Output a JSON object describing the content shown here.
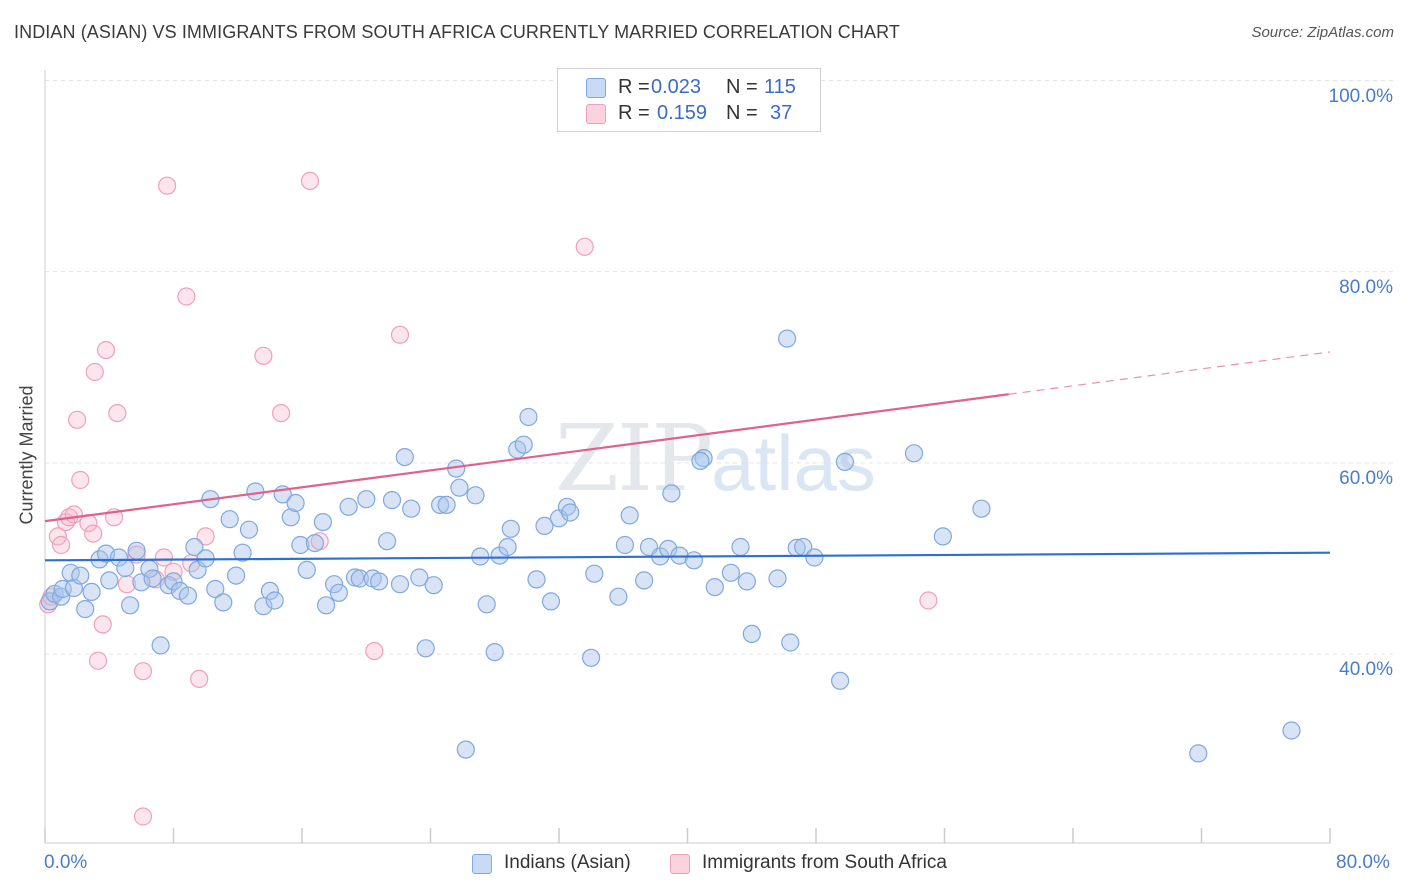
{
  "title": "INDIAN (ASIAN) VS IMMIGRANTS FROM SOUTH AFRICA CURRENTLY MARRIED CORRELATION CHART",
  "source": "Source: ZipAtlas.com",
  "watermark": {
    "zip": "ZIP",
    "atlas": "atlas"
  },
  "stats": {
    "rows": [
      {
        "r_label": "R =",
        "r_value": "0.023",
        "n_label": "N =",
        "n_value": "115",
        "color": "#a9c4ec"
      },
      {
        "r_label": "R =",
        "r_value": "0.159",
        "n_label": "N =",
        "n_value": "37",
        "color": "#f5b5c8"
      }
    ]
  },
  "legend": {
    "items": [
      {
        "label": "Indians (Asian)",
        "color": "#a9c4ec"
      },
      {
        "label": "Immigrants from South Africa",
        "color": "#f5b5c8"
      }
    ]
  },
  "colors": {
    "blue_line": "#2f6fd0",
    "pink_line": "#e0628c",
    "blue_point": "#7fa8e0",
    "pink_point": "#f0a0b8",
    "axis_label": "#4a7cc9"
  },
  "chart_data": {
    "type": "scatter",
    "title": "INDIAN (ASIAN) VS IMMIGRANTS FROM SOUTH AFRICA CURRENTLY MARRIED CORRELATION CHART",
    "xlabel": "",
    "ylabel": "Currently Married",
    "xlim": [
      0,
      80
    ],
    "ylim": [
      20,
      102
    ],
    "x_tick_labels": [
      "0.0%",
      "80.0%"
    ],
    "y_tick_labels": [
      "40.0%",
      "60.0%",
      "80.0%",
      "100.0%"
    ],
    "y_ticks": [
      40,
      60,
      80,
      100
    ],
    "grid": true,
    "legend_position": "bottom",
    "series": [
      {
        "name": "Indians (Asian)",
        "r": 0.023,
        "n": 115,
        "trend": {
          "x": [
            0,
            80
          ],
          "y": [
            49.8,
            50.6
          ],
          "dashed_from": null
        },
        "points": [
          [
            0.3,
            45.5
          ],
          [
            0.6,
            46.3
          ],
          [
            1.0,
            46.0
          ],
          [
            1.1,
            46.8
          ],
          [
            1.6,
            48.5
          ],
          [
            1.8,
            46.9
          ],
          [
            2.2,
            48.2
          ],
          [
            2.5,
            44.7
          ],
          [
            2.9,
            46.5
          ],
          [
            3.4,
            49.9
          ],
          [
            3.8,
            50.5
          ],
          [
            4.0,
            47.7
          ],
          [
            4.6,
            50.1
          ],
          [
            5.0,
            49.0
          ],
          [
            5.3,
            45.1
          ],
          [
            5.7,
            50.8
          ],
          [
            6.0,
            47.5
          ],
          [
            6.5,
            48.9
          ],
          [
            6.7,
            47.9
          ],
          [
            7.2,
            40.9
          ],
          [
            7.7,
            47.2
          ],
          [
            8.0,
            47.6
          ],
          [
            8.4,
            46.6
          ],
          [
            8.9,
            46.1
          ],
          [
            9.3,
            51.2
          ],
          [
            9.5,
            48.8
          ],
          [
            10.0,
            50.0
          ],
          [
            10.3,
            56.2
          ],
          [
            10.6,
            46.8
          ],
          [
            11.1,
            45.4
          ],
          [
            11.5,
            54.1
          ],
          [
            11.9,
            48.2
          ],
          [
            12.3,
            50.6
          ],
          [
            12.7,
            53.0
          ],
          [
            13.1,
            57.0
          ],
          [
            13.6,
            45.0
          ],
          [
            14.0,
            46.6
          ],
          [
            14.3,
            45.6
          ],
          [
            14.8,
            56.7
          ],
          [
            15.3,
            54.3
          ],
          [
            15.6,
            55.8
          ],
          [
            15.9,
            51.4
          ],
          [
            16.3,
            48.8
          ],
          [
            16.8,
            51.6
          ],
          [
            17.3,
            53.8
          ],
          [
            17.5,
            45.1
          ],
          [
            18.0,
            47.3
          ],
          [
            18.3,
            46.4
          ],
          [
            18.9,
            55.4
          ],
          [
            19.3,
            48.0
          ],
          [
            19.6,
            47.9
          ],
          [
            20.0,
            56.2
          ],
          [
            20.4,
            47.9
          ],
          [
            20.8,
            47.6
          ],
          [
            21.3,
            51.8
          ],
          [
            21.6,
            56.1
          ],
          [
            22.1,
            47.3
          ],
          [
            22.4,
            60.6
          ],
          [
            22.8,
            55.2
          ],
          [
            23.3,
            48.0
          ],
          [
            23.7,
            40.6
          ],
          [
            24.2,
            47.2
          ],
          [
            24.6,
            55.6
          ],
          [
            25.0,
            55.6
          ],
          [
            25.6,
            59.4
          ],
          [
            25.8,
            57.4
          ],
          [
            26.2,
            30.0
          ],
          [
            26.8,
            56.6
          ],
          [
            27.1,
            50.2
          ],
          [
            27.5,
            45.2
          ],
          [
            28.0,
            40.2
          ],
          [
            28.3,
            50.3
          ],
          [
            28.8,
            51.2
          ],
          [
            29.0,
            53.1
          ],
          [
            29.4,
            61.4
          ],
          [
            29.8,
            61.9
          ],
          [
            30.1,
            64.8
          ],
          [
            30.6,
            47.8
          ],
          [
            31.1,
            53.4
          ],
          [
            31.5,
            45.5
          ],
          [
            32.0,
            54.2
          ],
          [
            32.5,
            55.4
          ],
          [
            32.7,
            54.8
          ],
          [
            34.2,
            48.4
          ],
          [
            34.0,
            39.6
          ],
          [
            35.7,
            46.0
          ],
          [
            36.1,
            51.4
          ],
          [
            36.4,
            54.5
          ],
          [
            37.3,
            47.7
          ],
          [
            37.6,
            51.2
          ],
          [
            38.3,
            50.2
          ],
          [
            38.8,
            51.0
          ],
          [
            39.0,
            56.8
          ],
          [
            39.5,
            50.3
          ],
          [
            40.4,
            49.8
          ],
          [
            41.0,
            60.5
          ],
          [
            40.8,
            60.2
          ],
          [
            41.7,
            47.0
          ],
          [
            42.7,
            48.5
          ],
          [
            43.3,
            51.2
          ],
          [
            43.7,
            47.6
          ],
          [
            44.0,
            42.1
          ],
          [
            45.6,
            47.9
          ],
          [
            46.2,
            73.0
          ],
          [
            46.4,
            41.2
          ],
          [
            46.8,
            51.1
          ],
          [
            47.2,
            51.2
          ],
          [
            47.9,
            50.1
          ],
          [
            49.5,
            37.2
          ],
          [
            49.8,
            60.1
          ],
          [
            54.1,
            61.0
          ],
          [
            55.9,
            52.3
          ],
          [
            58.3,
            55.2
          ],
          [
            71.8,
            29.6
          ],
          [
            77.6,
            32.0
          ]
        ]
      },
      {
        "name": "Immigrants from South Africa",
        "r": 0.159,
        "n": 37,
        "trend": {
          "x": [
            0,
            80
          ],
          "y": [
            53.9,
            71.6
          ],
          "dashed_from": 60
        },
        "points": [
          [
            0.2,
            45.2
          ],
          [
            0.4,
            46.0
          ],
          [
            0.8,
            52.3
          ],
          [
            1.0,
            51.4
          ],
          [
            1.3,
            53.8
          ],
          [
            1.5,
            54.3
          ],
          [
            1.8,
            54.6
          ],
          [
            2.0,
            64.5
          ],
          [
            2.2,
            58.2
          ],
          [
            2.7,
            53.7
          ],
          [
            3.0,
            52.6
          ],
          [
            3.1,
            69.5
          ],
          [
            3.3,
            39.3
          ],
          [
            3.6,
            43.1
          ],
          [
            3.8,
            71.8
          ],
          [
            4.3,
            54.3
          ],
          [
            4.5,
            65.2
          ],
          [
            5.1,
            47.3
          ],
          [
            5.7,
            50.4
          ],
          [
            6.1,
            23.0
          ],
          [
            6.1,
            38.2
          ],
          [
            6.9,
            47.8
          ],
          [
            7.4,
            50.1
          ],
          [
            7.6,
            89.0
          ],
          [
            8.0,
            48.6
          ],
          [
            8.8,
            77.4
          ],
          [
            9.1,
            49.5
          ],
          [
            9.6,
            37.4
          ],
          [
            10.0,
            52.3
          ],
          [
            13.6,
            71.2
          ],
          [
            14.7,
            65.2
          ],
          [
            16.5,
            89.5
          ],
          [
            17.1,
            51.8
          ],
          [
            20.5,
            40.3
          ],
          [
            22.1,
            73.4
          ],
          [
            33.6,
            82.6
          ],
          [
            55.0,
            45.6
          ]
        ]
      }
    ]
  }
}
